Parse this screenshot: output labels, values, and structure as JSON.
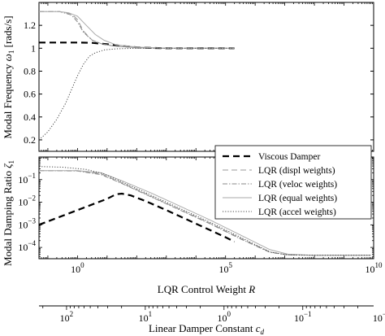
{
  "chart_data": [
    {
      "type": "line",
      "panel": "top",
      "ylabel": "Modal Frequency ω₁ [rads/s]",
      "xscale": "log",
      "xlim_log10": [
        -1.3,
        10
      ],
      "ylim": [
        0.1,
        1.4
      ],
      "yticks": [
        {
          "v": 0.2,
          "label": "0.2"
        },
        {
          "v": 0.4,
          "label": "0.4"
        },
        {
          "v": 0.6,
          "label": "0.6"
        },
        {
          "v": 0.8,
          "label": "0.8"
        },
        {
          "v": 1.0,
          "label": "1"
        },
        {
          "v": 1.2,
          "label": "1.2"
        }
      ],
      "series": [
        {
          "name": "Viscous Damper",
          "color": "#000000",
          "dash": "8,5",
          "width": 2.2,
          "points": [
            [
              -1.3,
              1.05
            ],
            [
              0,
              1.05
            ],
            [
              0.5,
              1.047
            ],
            [
              1,
              1.035
            ],
            [
              1.5,
              1.02
            ],
            [
              2,
              1.008
            ],
            [
              2.5,
              1.003
            ],
            [
              3,
              1.0
            ],
            [
              4,
              1.0
            ],
            [
              5,
              1.0
            ],
            [
              5.3,
              1.0
            ]
          ]
        },
        {
          "name": "LQR (displ weights)",
          "color": "#999999",
          "dash": "7,4",
          "width": 1,
          "points": [
            [
              -1.3,
              1.32
            ],
            [
              -0.6,
              1.32
            ],
            [
              -0.2,
              1.3
            ],
            [
              0,
              1.25
            ],
            [
              0.2,
              1.15
            ],
            [
              0.5,
              1.07
            ],
            [
              0.8,
              1.04
            ],
            [
              1.2,
              1.02
            ],
            [
              2,
              1.005
            ],
            [
              3,
              1.0
            ],
            [
              5.3,
              1.0
            ]
          ]
        },
        {
          "name": "LQR (veloc weights)",
          "color": "#888888",
          "dash": "6,2,1.5,2",
          "width": 1,
          "points": [
            [
              -1.3,
              1.32
            ],
            [
              -0.6,
              1.32
            ],
            [
              -0.2,
              1.29
            ],
            [
              0,
              1.23
            ],
            [
              0.2,
              1.14
            ],
            [
              0.5,
              1.07
            ],
            [
              0.8,
              1.04
            ],
            [
              1.2,
              1.02
            ],
            [
              2,
              1.005
            ],
            [
              3,
              1.0
            ],
            [
              5.3,
              1.0
            ]
          ]
        },
        {
          "name": "LQR (equal weights)",
          "color": "#aaaaaa",
          "dash": "",
          "width": 1,
          "points": [
            [
              -1.3,
              1.32
            ],
            [
              -0.6,
              1.32
            ],
            [
              -0.3,
              1.31
            ],
            [
              0,
              1.28
            ],
            [
              0.3,
              1.2
            ],
            [
              0.6,
              1.12
            ],
            [
              0.9,
              1.07
            ],
            [
              1.3,
              1.03
            ],
            [
              2,
              1.01
            ],
            [
              3,
              1.0
            ],
            [
              5.3,
              1.0
            ]
          ]
        },
        {
          "name": "LQR (accel weights)",
          "color": "#444444",
          "dash": "1.2,2",
          "width": 1,
          "points": [
            [
              -1.3,
              0.2
            ],
            [
              -1,
              0.27
            ],
            [
              -0.7,
              0.38
            ],
            [
              -0.4,
              0.52
            ],
            [
              -0.2,
              0.64
            ],
            [
              0,
              0.76
            ],
            [
              0.2,
              0.86
            ],
            [
              0.4,
              0.93
            ],
            [
              0.6,
              0.96
            ],
            [
              0.9,
              0.985
            ],
            [
              1.3,
              0.995
            ],
            [
              2,
              1.0
            ],
            [
              5.3,
              1.0
            ]
          ]
        }
      ]
    },
    {
      "type": "line",
      "panel": "bottom",
      "ylabel": "Modal Damping Ratio ζ₁",
      "xlabel": "LQR Control Weight R",
      "xscale": "log",
      "yscale": "log",
      "xlim_log10": [
        -1.3,
        10
      ],
      "ylim_log10": [
        -4.5,
        0
      ],
      "xticks": [
        {
          "v": 0,
          "base": "10",
          "exp": "0"
        },
        {
          "v": 5,
          "base": "10",
          "exp": "5"
        },
        {
          "v": 10,
          "base": "10",
          "exp": "10"
        }
      ],
      "yticks": [
        {
          "v": -1,
          "base": "10",
          "exp": "−1"
        },
        {
          "v": -2,
          "base": "10",
          "exp": "−2"
        },
        {
          "v": -3,
          "base": "10",
          "exp": "−3"
        },
        {
          "v": -4,
          "base": "10",
          "exp": "−4"
        }
      ],
      "series": [
        {
          "name": "Viscous Damper",
          "color": "#000000",
          "dash": "8,5",
          "width": 2.2,
          "points": [
            [
              -1.3,
              -3.0
            ],
            [
              -0.5,
              -2.6
            ],
            [
              0.3,
              -2.2
            ],
            [
              1,
              -1.85
            ],
            [
              1.3,
              -1.65
            ],
            [
              1.5,
              -1.62
            ],
            [
              1.8,
              -1.7
            ],
            [
              2.3,
              -1.95
            ],
            [
              3,
              -2.35
            ],
            [
              4,
              -2.95
            ],
            [
              5,
              -3.55
            ],
            [
              5.3,
              -3.75
            ]
          ]
        },
        {
          "name": "LQR (displ weights)",
          "color": "#999999",
          "dash": "7,4",
          "width": 1,
          "points": [
            [
              -1.3,
              -0.6
            ],
            [
              0,
              -0.6
            ],
            [
              0.8,
              -0.75
            ],
            [
              1.5,
              -1.15
            ],
            [
              2.5,
              -1.75
            ],
            [
              3.5,
              -2.35
            ],
            [
              4.5,
              -2.95
            ],
            [
              5.5,
              -3.6
            ],
            [
              6.5,
              -4.2
            ],
            [
              7.1,
              -4.33
            ],
            [
              8,
              -4.35
            ],
            [
              9.9,
              -4.35
            ]
          ]
        },
        {
          "name": "LQR (veloc weights)",
          "color": "#888888",
          "dash": "6,2,1.5,2",
          "width": 1,
          "points": [
            [
              -1.3,
              -0.6
            ],
            [
              0,
              -0.62
            ],
            [
              0.8,
              -0.78
            ],
            [
              1.5,
              -1.17
            ],
            [
              2.5,
              -1.77
            ],
            [
              3.5,
              -2.37
            ],
            [
              4.5,
              -2.97
            ],
            [
              5.5,
              -3.62
            ],
            [
              6.5,
              -4.22
            ],
            [
              7.1,
              -4.33
            ],
            [
              8,
              -4.35
            ],
            [
              9.9,
              -4.35
            ]
          ]
        },
        {
          "name": "LQR (equal weights)",
          "color": "#aaaaaa",
          "dash": "",
          "width": 1,
          "points": [
            [
              -1.3,
              -0.6
            ],
            [
              0,
              -0.6
            ],
            [
              0.8,
              -0.7
            ],
            [
              1.5,
              -1.05
            ],
            [
              2.5,
              -1.6
            ],
            [
              3.5,
              -2.2
            ],
            [
              4.5,
              -2.8
            ],
            [
              5.5,
              -3.45
            ],
            [
              6.5,
              -4.1
            ],
            [
              7.1,
              -4.3
            ],
            [
              8,
              -4.35
            ],
            [
              9.9,
              -4.35
            ]
          ]
        },
        {
          "name": "LQR (accel weights)",
          "color": "#444444",
          "dash": "1.2,2",
          "width": 1,
          "points": [
            [
              -1.3,
              -0.42
            ],
            [
              -0.5,
              -0.45
            ],
            [
              0.3,
              -0.55
            ],
            [
              0.9,
              -0.75
            ],
            [
              1.5,
              -1.1
            ],
            [
              2.5,
              -1.7
            ],
            [
              3.5,
              -2.3
            ],
            [
              4.5,
              -2.9
            ],
            [
              5.5,
              -3.55
            ],
            [
              6.5,
              -4.2
            ],
            [
              7.1,
              -4.33
            ],
            [
              8,
              -4.35
            ],
            [
              9.9,
              -4.35
            ]
          ]
        }
      ],
      "legend": {
        "placement": "upper-right",
        "entries": [
          "Viscous Damper",
          "LQR (displ weights)",
          "LQR (veloc weights)",
          "LQR (equal weights)",
          "LQR (accel weights)"
        ]
      }
    },
    {
      "type": "axis",
      "panel": "secondary-x",
      "xlabel": "Linear Damper Constant c_d",
      "xscale": "log (reversed)",
      "xticks": [
        {
          "v": 2,
          "base": "10",
          "exp": "2"
        },
        {
          "v": 1,
          "base": "10",
          "exp": "1"
        },
        {
          "v": 0,
          "base": "10",
          "exp": "0"
        },
        {
          "v": -1,
          "base": "10",
          "exp": "−1"
        },
        {
          "v": -2,
          "base": "10",
          "exp": "−2"
        }
      ]
    }
  ],
  "labels": {
    "top_ylabel_text": "Modal Frequency ",
    "top_ylabel_sym": "ω",
    "top_ylabel_sub": "1",
    "top_ylabel_unit": " [rads/s]",
    "bottom_ylabel_text": "Modal Damping Ratio ",
    "bottom_ylabel_sym": "ζ",
    "bottom_ylabel_sub": "1",
    "xlabel_text": "LQR Control Weight ",
    "xlabel_sym": "R",
    "x2label_text": "Linear Damper Constant ",
    "x2label_sym": "c",
    "x2label_sub": "d"
  }
}
